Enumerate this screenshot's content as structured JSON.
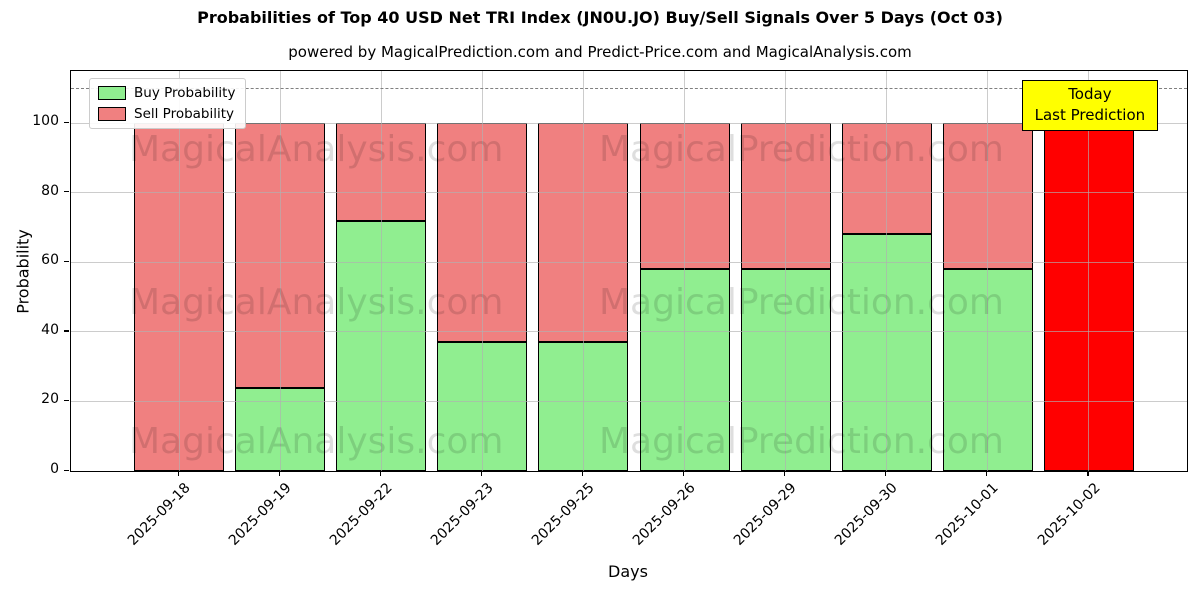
{
  "title": "Probabilities of Top 40 USD Net TRI Index (JN0U.JO) Buy/Sell Signals Over 5 Days (Oct 03)",
  "subtitle": "powered by MagicalPrediction.com and Predict-Price.com and MagicalAnalysis.com",
  "chart_data": {
    "type": "bar",
    "stacked": true,
    "categories": [
      "2025-09-18",
      "2025-09-19",
      "2025-09-22",
      "2025-09-23",
      "2025-09-25",
      "2025-09-26",
      "2025-09-29",
      "2025-09-30",
      "2025-10-01",
      "2025-10-02"
    ],
    "series": [
      {
        "name": "Buy Probability",
        "color": "#90ee90",
        "values": [
          0,
          24,
          72,
          37,
          37,
          58,
          58,
          68,
          58,
          0
        ]
      },
      {
        "name": "Sell Probability",
        "color": "#f08080",
        "values": [
          100,
          76,
          28,
          63,
          63,
          42,
          42,
          32,
          42,
          100
        ]
      }
    ],
    "highlight": {
      "index": 9,
      "color": "#ff0000",
      "label_line1": "Today",
      "label_line2": "Last Prediction",
      "label_bg": "#ffff00"
    },
    "xlabel": "Days",
    "ylabel": "Probability",
    "yticks": [
      0,
      20,
      40,
      60,
      80,
      100
    ],
    "ylim": [
      0,
      115
    ],
    "threshold_line_y": 110,
    "grid": true,
    "legend_position": "upper left",
    "watermarks": {
      "left": "MagicalAnalysis.com",
      "right": "MagicalPrediction.com"
    }
  }
}
